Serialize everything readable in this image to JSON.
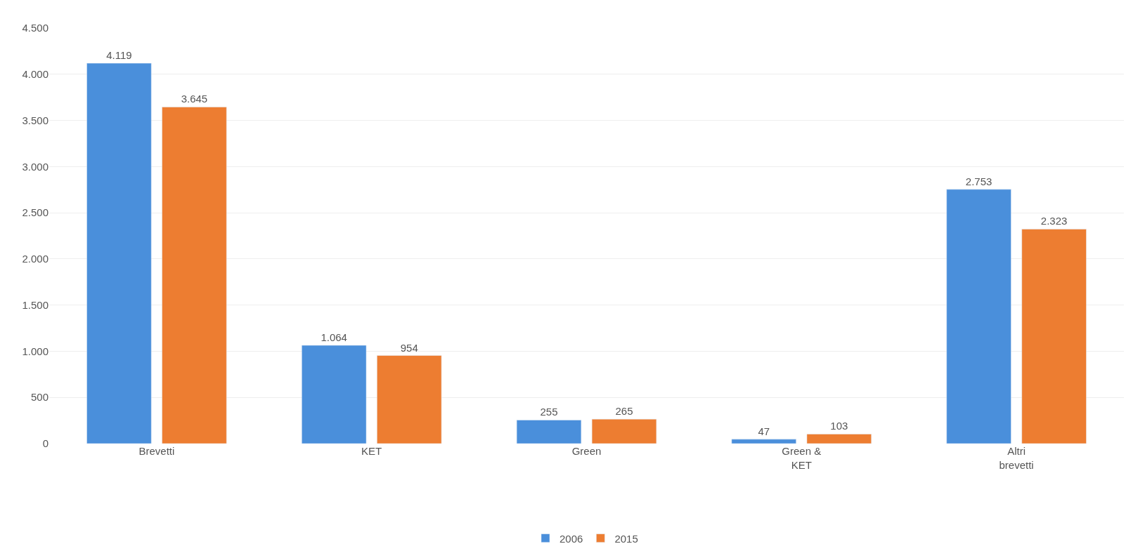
{
  "chart_data": {
    "type": "bar",
    "categories": [
      "Brevetti",
      "KET",
      "Green",
      "Green & KET",
      "Altri brevetti"
    ],
    "series": [
      {
        "name": "2006",
        "color": "#4a8fdb",
        "values": [
          4119,
          1064,
          255,
          47,
          2753
        ],
        "value_labels": [
          "4.119",
          "1.064",
          "255",
          "47",
          "2.753"
        ]
      },
      {
        "name": "2015",
        "color": "#ed7d31",
        "values": [
          3645,
          954,
          265,
          103,
          2323
        ],
        "value_labels": [
          "3.645",
          "954",
          "265",
          "103",
          "2.323"
        ]
      }
    ],
    "ylim": [
      0,
      4500
    ],
    "yticks": [
      0,
      500,
      {
        "value": 1000,
        "label": "1.000"
      },
      {
        "value": 1500,
        "label": "1.500"
      },
      {
        "value": 2000,
        "label": "2.000"
      },
      {
        "value": 2500,
        "label": "2.500"
      },
      {
        "value": 3000,
        "label": "3.000"
      },
      {
        "value": 3500,
        "label": "3.500"
      },
      {
        "value": 4000,
        "label": "4.000"
      },
      {
        "value": 4500,
        "label": "4.500"
      }
    ],
    "grid": "y",
    "legend": "bottom"
  }
}
